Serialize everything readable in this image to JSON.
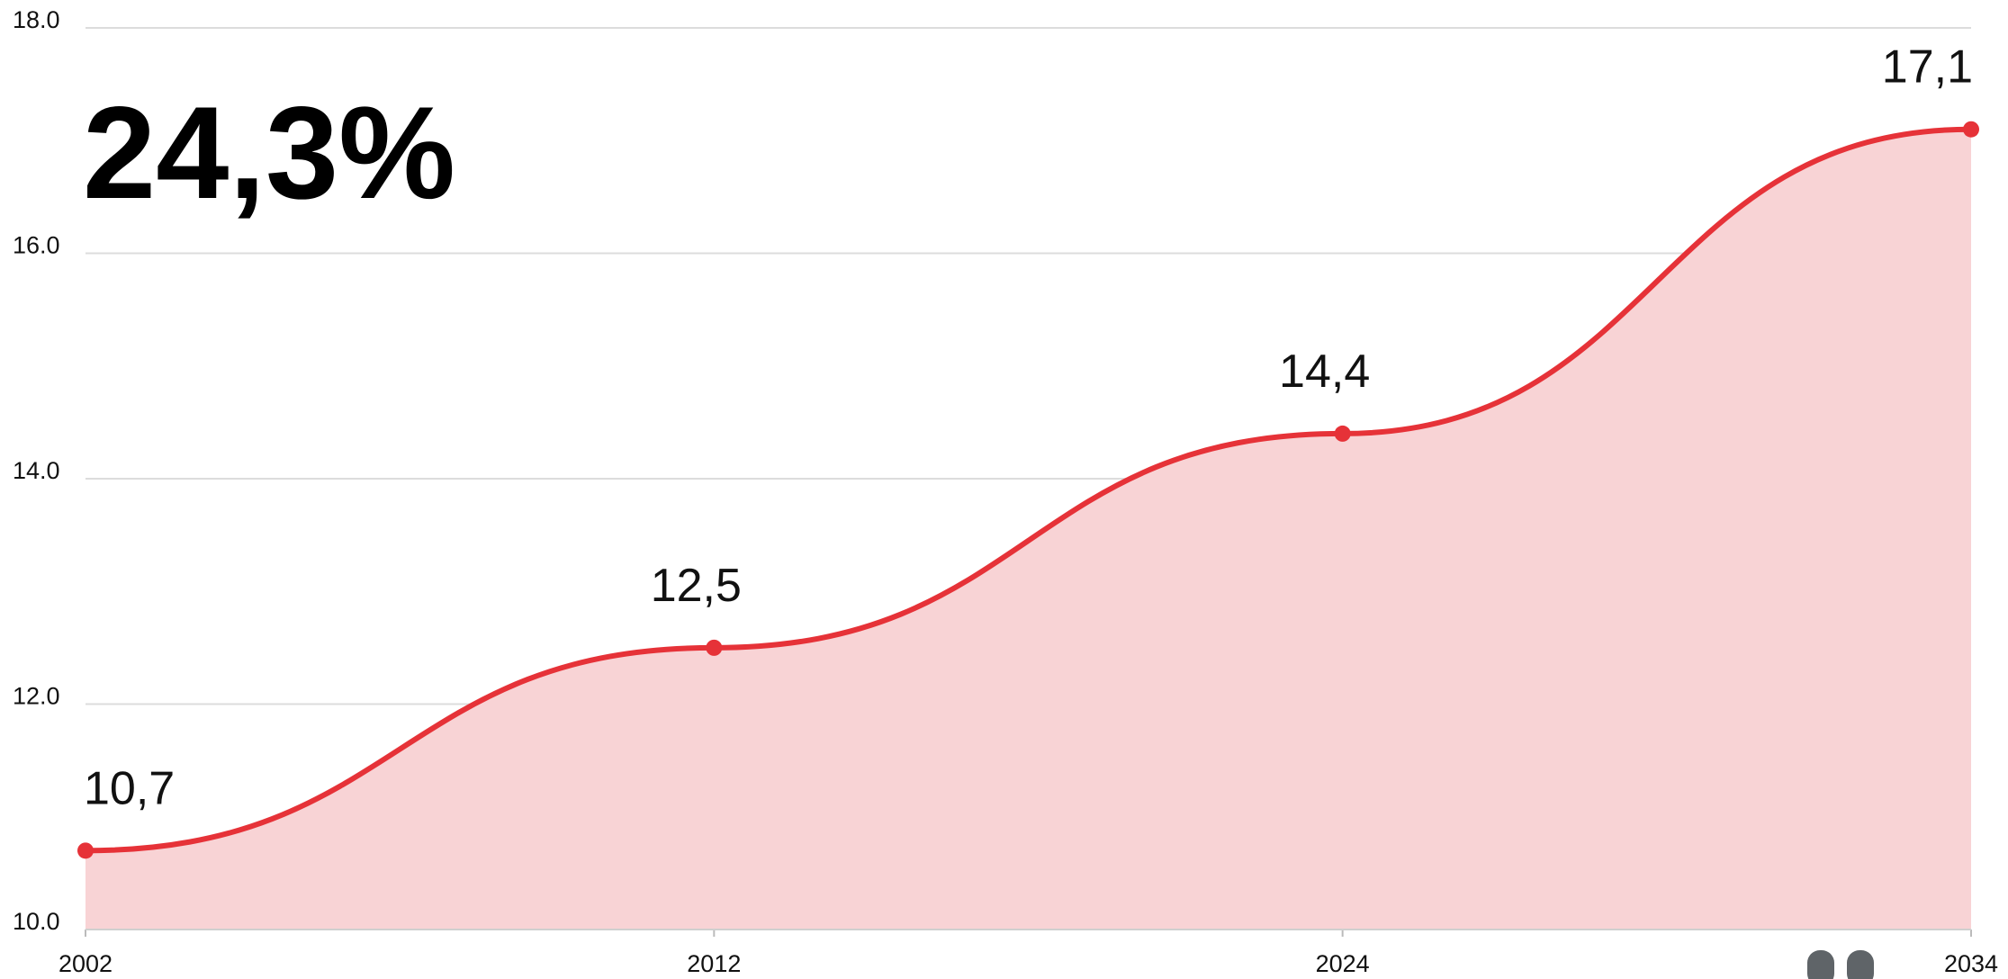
{
  "chart_data": {
    "type": "area",
    "annotation": "24,3%",
    "categories": [
      "2002",
      "2012",
      "2024",
      "2034"
    ],
    "values": [
      10.7,
      12.5,
      14.4,
      17.1
    ],
    "value_labels": [
      "10,7",
      "12,5",
      "14,4",
      "17,1"
    ],
    "color": "#e63238",
    "fill": "#f8d3d5",
    "ylim": [
      10,
      18
    ],
    "yticks": [
      {
        "value": 10,
        "label": "10.0"
      },
      {
        "value": 12,
        "label": "12.0"
      },
      {
        "value": 14,
        "label": "14.0"
      },
      {
        "value": 16,
        "label": "16.0"
      },
      {
        "value": 18,
        "label": "18.0"
      }
    ],
    "grid": true
  }
}
